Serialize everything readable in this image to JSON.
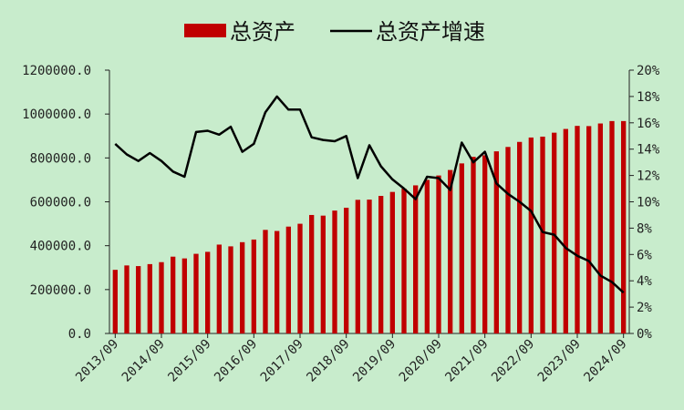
{
  "colors": {
    "background": "#c8eccc",
    "bar": "#c00000",
    "line": "#000000",
    "axis": "#222222"
  },
  "legend": {
    "bar_label": "总资产",
    "line_label": "总资产增速",
    "placement": "top-center"
  },
  "chart_data": {
    "type": "bar",
    "title": "",
    "xlabel": "",
    "ylabel": "",
    "grid": false,
    "legend_placement": "top-center",
    "x_tick_labels": [
      "2013/09",
      "2014/09",
      "2015/09",
      "2016/09",
      "2017/09",
      "2018/09",
      "2019/09",
      "2020/09",
      "2021/09",
      "2022/09",
      "2023/09",
      "2024/09"
    ],
    "y_left": {
      "ylim": [
        0,
        1200000
      ],
      "ticks": [
        "0.0",
        "200000.0",
        "400000.0",
        "600000.0",
        "800000.0",
        "1000000.0",
        "1200000.0"
      ]
    },
    "y_right": {
      "ylim": [
        0,
        20
      ],
      "ticks": [
        "0%",
        "2%",
        "4%",
        "6%",
        "8%",
        "10%",
        "12%",
        "14%",
        "16%",
        "18%",
        "20%"
      ]
    },
    "series": [
      {
        "name": "总资产",
        "type": "bar",
        "axis": "left",
        "values": [
          290000,
          310000,
          307000,
          316000,
          325000,
          350000,
          342000,
          363000,
          372000,
          405000,
          397000,
          416000,
          428000,
          472000,
          467000,
          487000,
          500000,
          540000,
          537000,
          560000,
          573000,
          609000,
          610000,
          627000,
          645000,
          660000,
          675000,
          700000,
          720000,
          745000,
          775000,
          805000,
          812000,
          830000,
          850000,
          873000,
          893000,
          897000,
          915000,
          932000,
          946000,
          945000,
          957000,
          968000,
          968000
        ]
      },
      {
        "name": "总资产增速",
        "type": "line",
        "axis": "right",
        "values": [
          14.4,
          13.6,
          13.1,
          13.7,
          13.1,
          12.3,
          11.9,
          15.3,
          15.4,
          15.1,
          15.7,
          13.8,
          14.4,
          16.8,
          18.0,
          17.0,
          17.0,
          14.9,
          14.7,
          14.6,
          15.0,
          11.8,
          14.3,
          12.7,
          11.7,
          11.0,
          10.2,
          11.9,
          11.8,
          10.9,
          14.5,
          13.0,
          13.8,
          11.4,
          10.6,
          10.0,
          9.3,
          7.7,
          7.5,
          6.5,
          5.9,
          5.5,
          4.4,
          3.9,
          3.1
        ]
      }
    ]
  }
}
